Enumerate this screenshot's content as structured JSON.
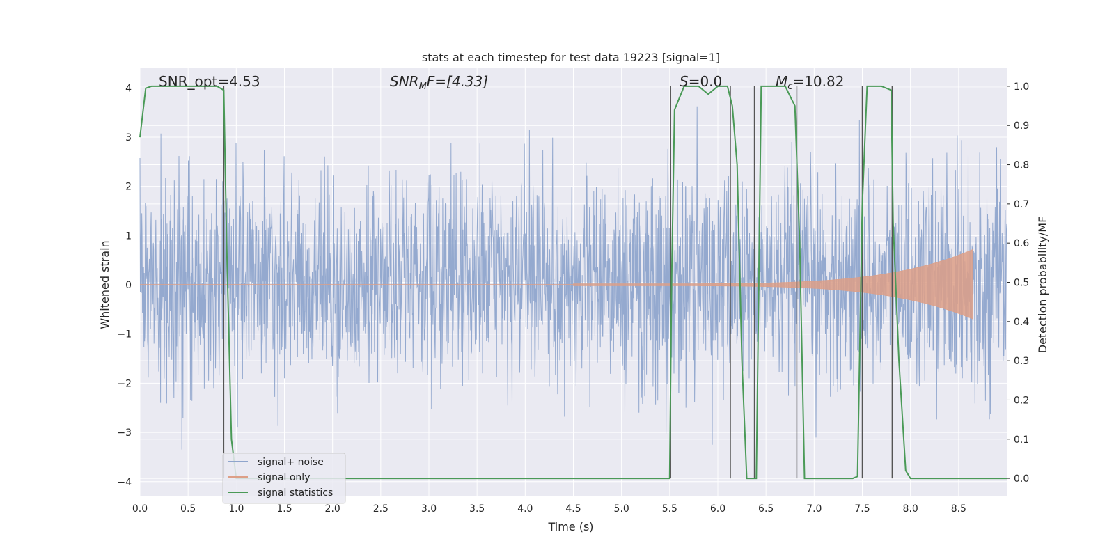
{
  "chart_data": {
    "type": "line",
    "title": "stats at each timestep for test data 19223 [signal=1]",
    "xlabel": "Time (s)",
    "ylabel": "Whitened strain",
    "ylabel_right": "Detection probability/MF",
    "xlim": [
      0.0,
      9.0
    ],
    "ylim": [
      -4.3,
      4.4
    ],
    "ylim_right": [
      -0.046,
      1.046
    ],
    "x_ticks": [
      "0.0",
      "0.5",
      "1.0",
      "1.5",
      "2.0",
      "2.5",
      "3.0",
      "3.5",
      "4.0",
      "4.5",
      "5.0",
      "5.5",
      "6.0",
      "6.5",
      "7.0",
      "7.5",
      "8.0",
      "8.5"
    ],
    "y_ticks": [
      "4",
      "3",
      "2",
      "1",
      "0",
      "−1",
      "−2",
      "−3",
      "−4"
    ],
    "y_ticks_right": [
      "1.0",
      "0.9",
      "0.8",
      "0.7",
      "0.6",
      "0.5",
      "0.4",
      "0.3",
      "0.2",
      "0.1",
      "0.0"
    ],
    "grid": true,
    "legend_placement": "lower-left",
    "annotations": {
      "snr_opt": "SNR_opt=4.53",
      "snr_mf_base": "SNR",
      "snr_mf_sub": "M",
      "snr_mf_rest": "F=[4.33]",
      "s_italic": "S",
      "s_rest": "=0.0",
      "mc_base": "M",
      "mc_sub": "c",
      "mc_rest": "=10.82"
    },
    "series": [
      {
        "name": "signal+ noise",
        "color": "#8fa5cc",
        "description_hidden": true,
        "noise_band_whitened": [
          -1.55,
          1.65
        ],
        "peak_range": [
          -3.8,
          4.0
        ]
      },
      {
        "name": "signal only",
        "color": "#dd9f87",
        "chirp_start": 4.5,
        "chirp_end": 8.65,
        "max_amplitude": 0.7
      },
      {
        "name": "signal statistics",
        "color": "#4a9a57",
        "axis": "right",
        "x": [
          0.0,
          0.06,
          0.12,
          0.2,
          0.5,
          0.8,
          0.87,
          0.9,
          0.95,
          1.0,
          1.5,
          2.0,
          3.0,
          4.0,
          5.0,
          5.5,
          5.52,
          5.55,
          5.6,
          5.65,
          5.8,
          5.9,
          6.0,
          6.1,
          6.15,
          6.2,
          6.25,
          6.3,
          6.35,
          6.4,
          6.45,
          6.5,
          6.7,
          6.8,
          6.85,
          6.9,
          6.95,
          7.0,
          7.2,
          7.4,
          7.45,
          7.5,
          7.55,
          7.6,
          7.7,
          7.8,
          7.82,
          7.88,
          7.95,
          8.0,
          8.5,
          9.0
        ],
        "y": [
          0.87,
          0.995,
          1.0,
          1.0,
          1.0,
          1.0,
          0.99,
          0.6,
          0.1,
          0.0,
          0.0,
          0.0,
          0.0,
          0.0,
          0.0,
          0.0,
          0.5,
          0.94,
          0.97,
          1.0,
          1.0,
          0.98,
          1.0,
          1.0,
          0.95,
          0.8,
          0.3,
          0.0,
          0.0,
          0.0,
          1.0,
          1.0,
          1.0,
          0.95,
          0.6,
          0.0,
          0.0,
          0.0,
          0.0,
          0.0,
          0.005,
          0.7,
          1.0,
          1.0,
          1.0,
          0.99,
          0.65,
          0.3,
          0.02,
          0.0,
          0.0,
          0.0
        ]
      }
    ],
    "vertical_lines_x": [
      0.87,
      5.51,
      6.13,
      6.38,
      6.82,
      7.5,
      7.81
    ]
  }
}
